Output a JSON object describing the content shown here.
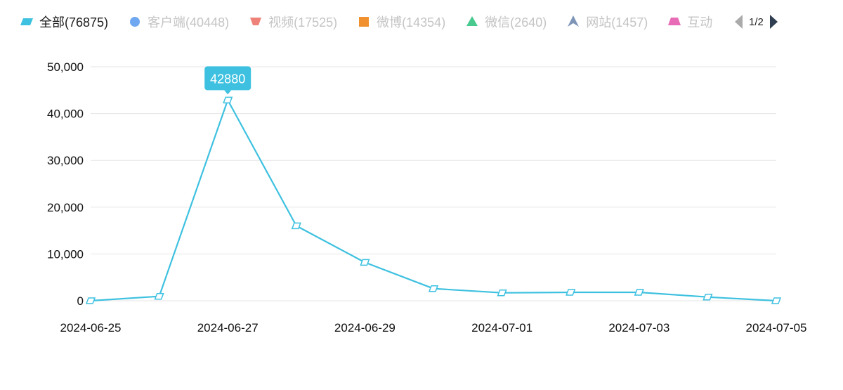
{
  "legend": {
    "items": [
      {
        "label": "全部(76875)",
        "icon": "parallelogram-icon",
        "color": "#3ec1e0",
        "active": true
      },
      {
        "label": "客户端(40448)",
        "icon": "circle-icon",
        "color": "#6fa8f0",
        "active": false
      },
      {
        "label": "视频(17525)",
        "icon": "inverted-trapezoid-icon",
        "color": "#ee8279",
        "active": false
      },
      {
        "label": "微博(14354)",
        "icon": "square-icon",
        "color": "#f0902f",
        "active": false
      },
      {
        "label": "微信(2640)",
        "icon": "triangle-icon",
        "color": "#48c98e",
        "active": false
      },
      {
        "label": "网站(1457)",
        "icon": "arrow-triangle-icon",
        "color": "#7e95b8",
        "active": false
      },
      {
        "label": "互动",
        "icon": "trapezoid-icon",
        "color": "#e86bb5",
        "active": false
      }
    ],
    "pager": {
      "text": "1/2",
      "prev_color": "#aaaaaa",
      "next_color": "#2f3e50"
    }
  },
  "chart_data": {
    "type": "line",
    "title": "",
    "xlabel": "",
    "ylabel": "",
    "x": [
      "2024-06-25",
      "2024-06-26",
      "2024-06-27",
      "2024-06-28",
      "2024-06-29",
      "2024-06-30",
      "2024-07-01",
      "2024-07-02",
      "2024-07-03",
      "2024-07-04",
      "2024-07-05"
    ],
    "x_tick_labels": [
      "2024-06-25",
      "2024-06-27",
      "2024-06-29",
      "2024-07-01",
      "2024-07-03",
      "2024-07-05"
    ],
    "series": [
      {
        "name": "全部",
        "color": "#3ec1e0",
        "values": [
          0,
          950,
          42880,
          16000,
          8200,
          2600,
          1700,
          1800,
          1800,
          800,
          0
        ]
      }
    ],
    "ylim": [
      0,
      50000
    ],
    "y_ticks": [
      0,
      10000,
      20000,
      30000,
      40000,
      50000
    ],
    "y_tick_labels": [
      "0",
      "10,000",
      "20,000",
      "30,000",
      "40,000",
      "50,000"
    ],
    "grid": true,
    "legend_position": "top",
    "tooltip": {
      "label": "42880",
      "point_index": 2,
      "color": "#3ec1e0"
    }
  }
}
